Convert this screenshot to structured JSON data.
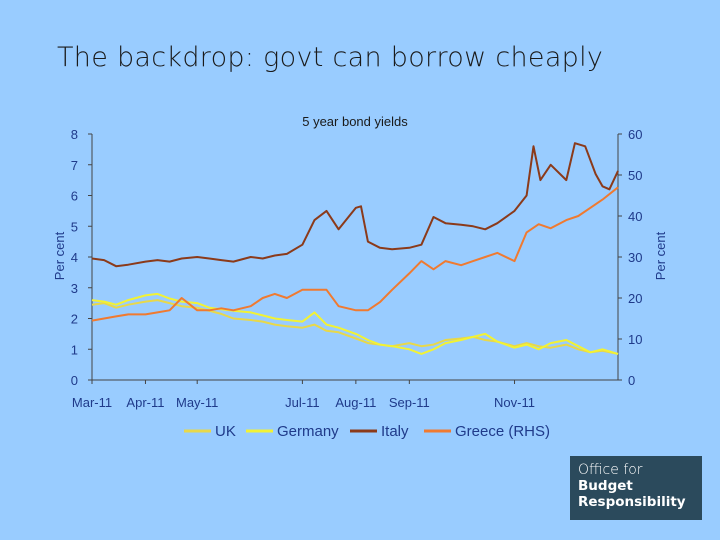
{
  "slide": {
    "title": "The backdrop: govt can borrow cheaply"
  },
  "logo": {
    "line1": "Office for",
    "line2": "Budget",
    "line3": "Responsibility"
  },
  "colors": {
    "background": "#99ccff",
    "axis": "#444444",
    "UK": "#e8d84a",
    "Germany": "#f2f234",
    "Italy": "#8b3a1a",
    "Greece (RHS)": "#f07a30",
    "logo_bg": "#2b4a5c"
  },
  "chart_data": {
    "type": "line",
    "title": "5 year bond yields",
    "ylabel": "Per cent",
    "y2label": "Per cent",
    "ylim": [
      0,
      8
    ],
    "y2lim": [
      0,
      60
    ],
    "yticks": [
      "0",
      "1",
      "2",
      "3",
      "4",
      "5",
      "6",
      "7",
      "8"
    ],
    "y2ticks": [
      "0",
      "10",
      "20",
      "30",
      "40",
      "50",
      "60"
    ],
    "xlim": [
      "2011-03-01",
      "2011-12-31"
    ],
    "xticks": [
      {
        "label": "Mar-11",
        "date": "2011-03-01"
      },
      {
        "label": "Apr-11",
        "date": "2011-04-01"
      },
      {
        "label": "May-11",
        "date": "2011-05-01"
      },
      {
        "label": "Jul-11",
        "date": "2011-07-01"
      },
      {
        "label": "Aug-11",
        "date": "2011-08-01"
      },
      {
        "label": "Sep-11",
        "date": "2011-09-01"
      },
      {
        "label": "Nov-11",
        "date": "2011-11-01"
      }
    ],
    "legend_position": "bottom",
    "grid": false,
    "series": [
      {
        "name": "UK",
        "axis": "left",
        "points": [
          [
            "2011-03-01",
            2.45
          ],
          [
            "2011-03-08",
            2.5
          ],
          [
            "2011-03-15",
            2.35
          ],
          [
            "2011-03-22",
            2.45
          ],
          [
            "2011-04-01",
            2.55
          ],
          [
            "2011-04-08",
            2.6
          ],
          [
            "2011-04-15",
            2.5
          ],
          [
            "2011-04-22",
            2.4
          ],
          [
            "2011-05-01",
            2.35
          ],
          [
            "2011-05-08",
            2.25
          ],
          [
            "2011-05-15",
            2.15
          ],
          [
            "2011-05-22",
            2.0
          ],
          [
            "2011-06-01",
            1.95
          ],
          [
            "2011-06-08",
            1.9
          ],
          [
            "2011-06-15",
            1.8
          ],
          [
            "2011-06-22",
            1.75
          ],
          [
            "2011-07-01",
            1.7
          ],
          [
            "2011-07-08",
            1.8
          ],
          [
            "2011-07-15",
            1.6
          ],
          [
            "2011-07-22",
            1.55
          ],
          [
            "2011-08-01",
            1.35
          ],
          [
            "2011-08-08",
            1.2
          ],
          [
            "2011-08-15",
            1.15
          ],
          [
            "2011-08-22",
            1.1
          ],
          [
            "2011-09-01",
            1.2
          ],
          [
            "2011-09-08",
            1.1
          ],
          [
            "2011-09-15",
            1.15
          ],
          [
            "2011-09-22",
            1.3
          ],
          [
            "2011-10-01",
            1.35
          ],
          [
            "2011-10-08",
            1.4
          ],
          [
            "2011-10-15",
            1.3
          ],
          [
            "2011-10-22",
            1.25
          ],
          [
            "2011-11-01",
            1.1
          ],
          [
            "2011-11-08",
            1.2
          ],
          [
            "2011-11-15",
            1.1
          ],
          [
            "2011-11-22",
            1.05
          ],
          [
            "2011-12-01",
            1.15
          ],
          [
            "2011-12-08",
            1.0
          ],
          [
            "2011-12-15",
            0.9
          ],
          [
            "2011-12-22",
            0.95
          ],
          [
            "2011-12-31",
            0.85
          ]
        ]
      },
      {
        "name": "Germany",
        "axis": "left",
        "points": [
          [
            "2011-03-01",
            2.6
          ],
          [
            "2011-03-08",
            2.55
          ],
          [
            "2011-03-15",
            2.45
          ],
          [
            "2011-03-22",
            2.6
          ],
          [
            "2011-04-01",
            2.75
          ],
          [
            "2011-04-08",
            2.8
          ],
          [
            "2011-04-15",
            2.65
          ],
          [
            "2011-04-22",
            2.55
          ],
          [
            "2011-05-01",
            2.5
          ],
          [
            "2011-05-08",
            2.35
          ],
          [
            "2011-05-15",
            2.3
          ],
          [
            "2011-05-22",
            2.25
          ],
          [
            "2011-06-01",
            2.2
          ],
          [
            "2011-06-08",
            2.1
          ],
          [
            "2011-06-15",
            2.0
          ],
          [
            "2011-06-22",
            1.95
          ],
          [
            "2011-07-01",
            1.9
          ],
          [
            "2011-07-08",
            2.2
          ],
          [
            "2011-07-15",
            1.8
          ],
          [
            "2011-07-22",
            1.7
          ],
          [
            "2011-08-01",
            1.5
          ],
          [
            "2011-08-08",
            1.3
          ],
          [
            "2011-08-15",
            1.15
          ],
          [
            "2011-08-22",
            1.1
          ],
          [
            "2011-09-01",
            1.0
          ],
          [
            "2011-09-08",
            0.85
          ],
          [
            "2011-09-15",
            1.0
          ],
          [
            "2011-09-22",
            1.2
          ],
          [
            "2011-10-01",
            1.3
          ],
          [
            "2011-10-08",
            1.4
          ],
          [
            "2011-10-15",
            1.5
          ],
          [
            "2011-10-22",
            1.25
          ],
          [
            "2011-11-01",
            1.05
          ],
          [
            "2011-11-08",
            1.15
          ],
          [
            "2011-11-15",
            1.0
          ],
          [
            "2011-11-22",
            1.2
          ],
          [
            "2011-12-01",
            1.3
          ],
          [
            "2011-12-08",
            1.1
          ],
          [
            "2011-12-15",
            0.9
          ],
          [
            "2011-12-22",
            1.0
          ],
          [
            "2011-12-31",
            0.85
          ]
        ]
      },
      {
        "name": "Italy",
        "axis": "left",
        "points": [
          [
            "2011-03-01",
            3.95
          ],
          [
            "2011-03-08",
            3.9
          ],
          [
            "2011-03-15",
            3.7
          ],
          [
            "2011-03-22",
            3.75
          ],
          [
            "2011-04-01",
            3.85
          ],
          [
            "2011-04-08",
            3.9
          ],
          [
            "2011-04-15",
            3.85
          ],
          [
            "2011-04-22",
            3.95
          ],
          [
            "2011-05-01",
            4.0
          ],
          [
            "2011-05-08",
            3.95
          ],
          [
            "2011-05-15",
            3.9
          ],
          [
            "2011-05-22",
            3.85
          ],
          [
            "2011-06-01",
            4.0
          ],
          [
            "2011-06-08",
            3.95
          ],
          [
            "2011-06-15",
            4.05
          ],
          [
            "2011-06-22",
            4.1
          ],
          [
            "2011-07-01",
            4.4
          ],
          [
            "2011-07-08",
            5.2
          ],
          [
            "2011-07-15",
            5.5
          ],
          [
            "2011-07-22",
            4.9
          ],
          [
            "2011-08-01",
            5.6
          ],
          [
            "2011-08-04",
            5.65
          ],
          [
            "2011-08-08",
            4.5
          ],
          [
            "2011-08-15",
            4.3
          ],
          [
            "2011-08-22",
            4.25
          ],
          [
            "2011-09-01",
            4.3
          ],
          [
            "2011-09-08",
            4.4
          ],
          [
            "2011-09-15",
            5.3
          ],
          [
            "2011-09-22",
            5.1
          ],
          [
            "2011-10-01",
            5.05
          ],
          [
            "2011-10-08",
            5.0
          ],
          [
            "2011-10-15",
            4.9
          ],
          [
            "2011-10-22",
            5.1
          ],
          [
            "2011-11-01",
            5.5
          ],
          [
            "2011-11-08",
            6.0
          ],
          [
            "2011-11-12",
            7.6
          ],
          [
            "2011-11-16",
            6.5
          ],
          [
            "2011-11-22",
            7.0
          ],
          [
            "2011-12-01",
            6.5
          ],
          [
            "2011-12-06",
            7.7
          ],
          [
            "2011-12-12",
            7.6
          ],
          [
            "2011-12-18",
            6.7
          ],
          [
            "2011-12-22",
            6.3
          ],
          [
            "2011-12-26",
            6.2
          ],
          [
            "2011-12-31",
            6.8
          ]
        ]
      },
      {
        "name": "Greece (RHS)",
        "axis": "right",
        "points": [
          [
            "2011-03-01",
            14.5
          ],
          [
            "2011-03-08",
            15
          ],
          [
            "2011-03-15",
            15.5
          ],
          [
            "2011-03-22",
            16
          ],
          [
            "2011-04-01",
            16
          ],
          [
            "2011-04-08",
            16.5
          ],
          [
            "2011-04-15",
            17
          ],
          [
            "2011-04-22",
            20
          ],
          [
            "2011-05-01",
            17
          ],
          [
            "2011-05-08",
            17
          ],
          [
            "2011-05-15",
            17.5
          ],
          [
            "2011-05-22",
            17
          ],
          [
            "2011-06-01",
            18
          ],
          [
            "2011-06-08",
            20
          ],
          [
            "2011-06-15",
            21
          ],
          [
            "2011-06-22",
            20
          ],
          [
            "2011-07-01",
            22
          ],
          [
            "2011-07-08",
            22
          ],
          [
            "2011-07-15",
            22
          ],
          [
            "2011-07-22",
            18
          ],
          [
            "2011-08-01",
            17
          ],
          [
            "2011-08-08",
            17
          ],
          [
            "2011-08-15",
            19
          ],
          [
            "2011-08-22",
            22
          ],
          [
            "2011-09-01",
            26
          ],
          [
            "2011-09-08",
            29
          ],
          [
            "2011-09-15",
            27
          ],
          [
            "2011-09-22",
            29
          ],
          [
            "2011-10-01",
            28
          ],
          [
            "2011-10-08",
            29
          ],
          [
            "2011-10-15",
            30
          ],
          [
            "2011-10-22",
            31
          ],
          [
            "2011-11-01",
            29
          ],
          [
            "2011-11-08",
            36
          ],
          [
            "2011-11-15",
            38
          ],
          [
            "2011-11-22",
            37
          ],
          [
            "2011-12-01",
            39
          ],
          [
            "2011-12-08",
            40
          ],
          [
            "2011-12-15",
            42
          ],
          [
            "2011-12-22",
            44
          ],
          [
            "2011-12-31",
            47
          ]
        ]
      }
    ]
  }
}
